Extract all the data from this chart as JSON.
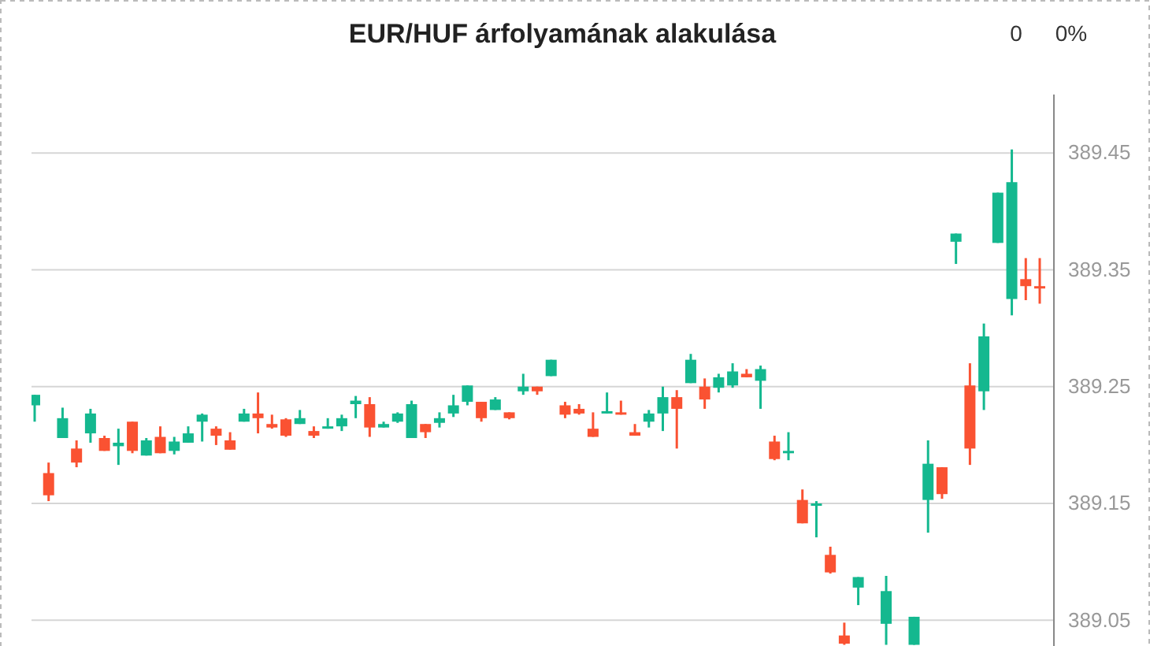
{
  "chart_data": {
    "type": "candlestick",
    "title": "EUR/HUF árfolyamának alakulása",
    "annotations": [
      "0",
      "0%"
    ],
    "categories": [
      null,
      null,
      null,
      null,
      null,
      null,
      null,
      null,
      null,
      null,
      null,
      null,
      null,
      null,
      null,
      null,
      null,
      null,
      null,
      null,
      null,
      null,
      null,
      null,
      null,
      null,
      null,
      null,
      null,
      null,
      null,
      null,
      null,
      null,
      null,
      null,
      null,
      null,
      null,
      null,
      null,
      null,
      null,
      null,
      null,
      null,
      null,
      null,
      null,
      null,
      null,
      null,
      null,
      null,
      null,
      null,
      null,
      null,
      null,
      null,
      null,
      null,
      null,
      null,
      null,
      null,
      null,
      null,
      null,
      null,
      null,
      null,
      null
    ],
    "ohlc": [
      [
        389.234,
        389.243,
        389.22,
        389.243
      ],
      [
        389.176,
        389.185,
        389.152,
        389.157
      ],
      [
        389.206,
        389.232,
        389.206,
        389.223
      ],
      [
        389.197,
        389.204,
        389.181,
        389.185
      ],
      [
        389.21,
        389.231,
        389.202,
        389.227
      ],
      [
        389.206,
        389.208,
        389.195,
        389.195
      ],
      [
        389.199,
        389.214,
        389.183,
        389.202
      ],
      [
        389.22,
        389.22,
        389.193,
        389.195
      ],
      [
        389.191,
        389.206,
        389.191,
        389.204
      ],
      [
        389.207,
        389.216,
        389.193,
        389.193
      ],
      [
        389.195,
        389.207,
        389.192,
        389.203
      ],
      [
        389.202,
        389.216,
        389.202,
        389.21
      ],
      [
        389.22,
        389.227,
        389.203,
        389.226
      ],
      [
        389.214,
        389.216,
        389.2,
        389.208
      ],
      [
        389.204,
        389.211,
        389.196,
        389.196
      ],
      [
        389.22,
        389.231,
        389.22,
        389.227
      ],
      [
        389.227,
        389.245,
        389.21,
        389.223
      ],
      [
        389.218,
        389.226,
        389.214,
        389.215
      ],
      [
        389.222,
        389.223,
        389.207,
        389.208
      ],
      [
        389.218,
        389.23,
        389.218,
        389.223
      ],
      [
        389.212,
        389.216,
        389.206,
        389.208
      ],
      [
        389.214,
        389.223,
        389.214,
        389.216
      ],
      [
        389.216,
        389.226,
        389.212,
        389.223
      ],
      [
        389.235,
        389.242,
        389.223,
        389.238
      ],
      [
        389.235,
        389.241,
        389.207,
        389.215
      ],
      [
        389.215,
        389.22,
        389.215,
        389.218
      ],
      [
        389.22,
        389.228,
        389.219,
        389.227
      ],
      [
        389.206,
        389.238,
        389.206,
        389.235
      ],
      [
        389.218,
        389.218,
        389.206,
        389.211
      ],
      [
        389.219,
        389.228,
        389.215,
        389.223
      ],
      [
        389.227,
        389.243,
        389.224,
        389.234
      ],
      [
        389.237,
        389.251,
        389.234,
        389.251
      ],
      [
        389.237,
        389.237,
        389.22,
        389.223
      ],
      [
        389.23,
        389.241,
        389.23,
        389.239
      ],
      [
        389.228,
        389.228,
        389.222,
        389.223
      ],
      [
        389.246,
        389.261,
        389.243,
        389.25
      ],
      [
        389.25,
        389.25,
        389.243,
        389.246
      ],
      [
        389.259,
        389.273,
        389.259,
        389.273
      ],
      [
        389.234,
        389.237,
        389.223,
        389.226
      ],
      [
        389.231,
        389.235,
        389.226,
        389.227
      ],
      [
        389.214,
        389.228,
        389.207,
        389.207
      ],
      [
        389.228,
        389.245,
        389.227,
        389.229
      ],
      [
        389.228,
        389.238,
        389.226,
        389.226
      ],
      [
        389.211,
        389.218,
        389.208,
        389.208
      ],
      [
        389.22,
        389.23,
        389.215,
        389.227
      ],
      [
        389.227,
        389.25,
        389.212,
        389.241
      ],
      [
        389.241,
        389.247,
        389.197,
        389.231
      ],
      [
        389.253,
        389.278,
        389.253,
        389.273
      ],
      [
        389.25,
        389.257,
        389.231,
        389.239
      ],
      [
        389.249,
        389.261,
        389.245,
        389.258
      ],
      [
        389.251,
        389.27,
        389.249,
        389.263
      ],
      [
        389.261,
        389.265,
        389.258,
        389.258
      ],
      [
        389.255,
        389.268,
        389.231,
        389.265
      ],
      [
        389.203,
        389.208,
        389.187,
        389.188
      ],
      [
        389.193,
        389.211,
        389.187,
        389.195
      ],
      [
        389.153,
        389.162,
        389.133,
        389.133
      ],
      [
        389.148,
        389.152,
        389.121,
        389.15
      ],
      [
        389.106,
        389.113,
        389.09,
        389.091
      ],
      [
        389.037,
        389.048,
        389.029,
        389.03
      ],
      [
        389.078,
        389.087,
        389.063,
        389.087
      ],
      null,
      [
        389.047,
        389.088,
        389.029,
        389.075
      ],
      null,
      [
        389.029,
        389.053,
        389.029,
        389.053
      ],
      [
        389.153,
        389.204,
        389.125,
        389.184
      ],
      [
        389.181,
        389.181,
        389.154,
        389.158
      ],
      [
        389.374,
        389.381,
        389.355,
        389.381
      ],
      [
        389.251,
        389.27,
        389.183,
        389.197
      ],
      [
        389.246,
        389.304,
        389.23,
        389.293
      ],
      [
        389.373,
        389.416,
        389.373,
        389.416
      ],
      [
        389.325,
        389.453,
        389.311,
        389.425
      ],
      [
        389.342,
        389.36,
        389.324,
        389.336
      ],
      [
        389.336,
        389.36,
        389.321,
        389.334
      ]
    ],
    "ylim": [
      389.028,
      389.5
    ],
    "yticks": [
      389.05,
      389.15,
      389.25,
      389.35,
      389.45
    ],
    "grid": "y",
    "tick_labels": "y"
  }
}
